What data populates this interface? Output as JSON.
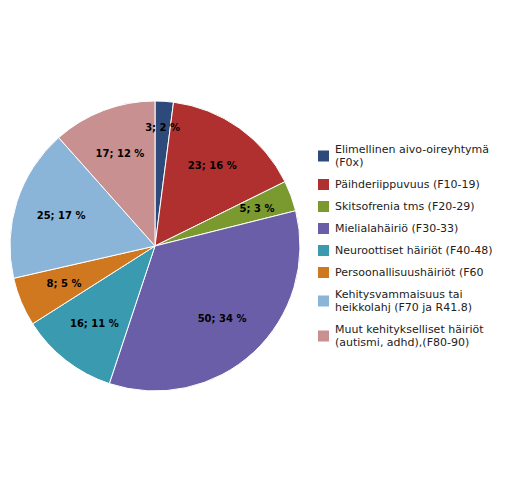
{
  "chart_data": {
    "type": "pie",
    "categories": [
      "Elimellinen aivo-oireyhtymä\n(F0x)",
      "Päihderiippuvuus (F10-19)",
      "Skitsofrenia tms (F20-29)",
      "Mielialahäiriö (F30-33)",
      "Neuroottiset häiriöt (F40-48)",
      "Persoonallisuushäiriöt (F60",
      "Kehitysvammaisuus tai\nheikkolahj (F70 ja R41.8)",
      "Muut kehitykselliset häiriöt\n(autismi, adhd),(F80-90)"
    ],
    "values": [
      3,
      23,
      5,
      50,
      16,
      8,
      25,
      17
    ],
    "value_labels": [
      "3; 2 %",
      "23; 16 %",
      "5; 3 %",
      "50; 34 %",
      "16; 11 %",
      "8; 5 %",
      "25; 17 %",
      "17; 12 %"
    ],
    "colors": [
      "#2e4a7a",
      "#b03030",
      "#7a9a30",
      "#6b5ea8",
      "#3a9ab0",
      "#d07820",
      "#8ab4d8",
      "#c89090"
    ],
    "data_labels": true,
    "legend": "right"
  }
}
